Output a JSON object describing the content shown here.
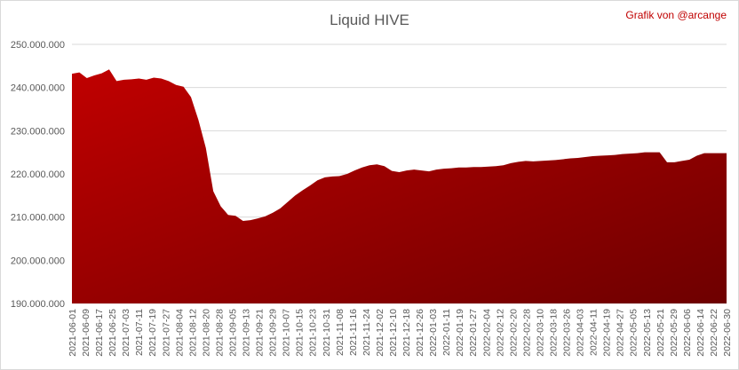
{
  "chart_data": {
    "type": "area",
    "title": "Liquid HIVE",
    "credit": "Grafik von @arcange",
    "xlabel": "",
    "ylabel": "",
    "ylim": [
      190000000,
      250000000
    ],
    "yticks": [
      190000000,
      200000000,
      210000000,
      220000000,
      230000000,
      240000000,
      250000000
    ],
    "ytick_labels": [
      "190.000.000",
      "200.000.000",
      "210.000.000",
      "220.000.000",
      "230.000.000",
      "240.000.000",
      "250.000.000"
    ],
    "grid": true,
    "legend": "none",
    "colors": {
      "fill_top": "#c00000",
      "fill_bottom": "#6e0000",
      "grid": "#d9d9d9",
      "text": "#595959",
      "credit": "#c00000"
    },
    "xticks": [
      "2021-06-01",
      "2021-06-09",
      "2021-06-17",
      "2021-06-25",
      "2021-07-03",
      "2021-07-11",
      "2021-07-19",
      "2021-07-27",
      "2021-08-04",
      "2021-08-12",
      "2021-08-20",
      "2021-08-28",
      "2021-09-05",
      "2021-09-13",
      "2021-09-21",
      "2021-09-29",
      "2021-10-07",
      "2021-10-15",
      "2021-10-23",
      "2021-10-31",
      "2021-11-08",
      "2021-11-16",
      "2021-11-24",
      "2021-12-02",
      "2021-12-10",
      "2021-12-18",
      "2021-12-26",
      "2022-01-03",
      "2022-01-11",
      "2022-01-19",
      "2022-01-27",
      "2022-02-04",
      "2022-02-12",
      "2022-02-20",
      "2022-02-28",
      "2022-03-10",
      "2022-03-18",
      "2022-03-26",
      "2022-04-03",
      "2022-04-11",
      "2022-04-19",
      "2022-04-27",
      "2022-05-05",
      "2022-05-13",
      "2022-05-21",
      "2022-05-29",
      "2022-06-06",
      "2022-06-14",
      "2022-06-22",
      "2022-06-30"
    ],
    "series": [
      {
        "values": [
          243200000,
          243500000,
          242200000,
          242800000,
          243300000,
          244200000,
          241500000,
          241800000,
          241900000,
          242100000,
          241800000,
          242300000,
          242100000,
          241500000,
          240600000,
          240200000,
          237800000,
          232500000,
          226000000,
          216000000,
          212500000,
          210500000,
          210300000,
          209100000,
          209300000,
          209700000,
          210200000,
          211000000,
          212000000,
          213500000,
          215000000,
          216200000,
          217300000,
          218500000,
          219200000,
          219400000,
          219500000,
          220000000,
          220800000,
          221500000,
          222000000,
          222200000,
          221800000,
          220700000,
          220400000,
          220800000,
          221000000,
          220800000,
          220600000,
          221000000,
          221200000,
          221300000,
          221500000,
          221500000,
          221600000,
          221600000,
          221700000,
          221800000,
          222000000,
          222500000,
          222800000,
          223000000,
          222900000,
          223000000,
          223100000,
          223200000,
          223400000,
          223600000,
          223700000,
          223900000,
          224100000,
          224200000,
          224300000,
          224400000,
          224600000,
          224700000,
          224800000,
          225000000,
          225000000,
          225000000,
          222700000,
          222700000,
          223000000,
          223300000,
          224200000,
          224800000,
          224800000,
          224800000,
          224800000
        ]
      }
    ]
  }
}
